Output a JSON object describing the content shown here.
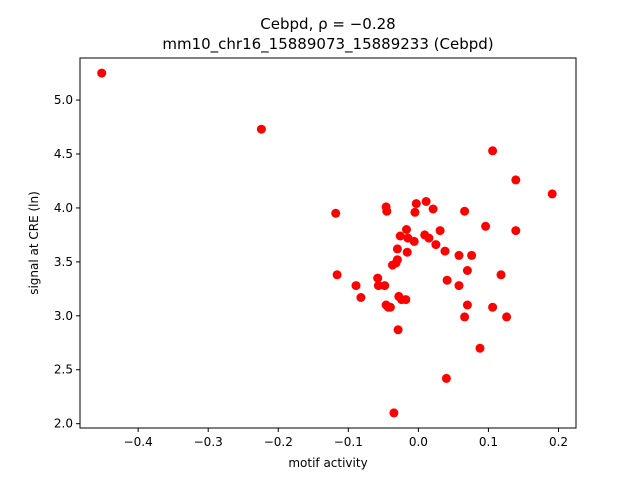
{
  "chart_data": {
    "type": "scatter",
    "title_line1": "Cebpd, ρ = −0.28",
    "title_line2": "mm10_chr16_15889073_15889233 (Cebpd)",
    "xlabel": "motif activity",
    "ylabel": "signal at CRE (ln)",
    "xlim": [
      -0.483,
      0.225
    ],
    "ylim": [
      1.96,
      5.39
    ],
    "xticks": [
      -0.4,
      -0.3,
      -0.2,
      -0.1,
      0.0,
      0.1,
      0.2
    ],
    "xtick_labels": [
      "−0.4",
      "−0.3",
      "−0.2",
      "−0.1",
      "0.0",
      "0.1",
      "0.2"
    ],
    "yticks": [
      2.0,
      2.5,
      3.0,
      3.5,
      4.0,
      4.5,
      5.0
    ],
    "ytick_labels": [
      "2.0",
      "2.5",
      "3.0",
      "3.5",
      "4.0",
      "4.5",
      "5.0"
    ],
    "grid": false,
    "marker_color": "#ff0000",
    "points": [
      [
        -0.452,
        5.25
      ],
      [
        -0.224,
        4.73
      ],
      [
        -0.118,
        3.95
      ],
      [
        -0.116,
        3.38
      ],
      [
        -0.089,
        3.28
      ],
      [
        -0.082,
        3.17
      ],
      [
        -0.058,
        3.35
      ],
      [
        -0.057,
        3.28
      ],
      [
        -0.048,
        3.28
      ],
      [
        -0.046,
        4.01
      ],
      [
        -0.045,
        3.97
      ],
      [
        -0.046,
        3.1
      ],
      [
        -0.043,
        3.08
      ],
      [
        -0.04,
        3.08
      ],
      [
        -0.037,
        3.47
      ],
      [
        -0.035,
        2.1
      ],
      [
        -0.032,
        3.49
      ],
      [
        -0.03,
        3.52
      ],
      [
        -0.03,
        3.62
      ],
      [
        -0.029,
        2.87
      ],
      [
        -0.028,
        3.18
      ],
      [
        -0.026,
        3.74
      ],
      [
        -0.024,
        3.15
      ],
      [
        -0.017,
        3.8
      ],
      [
        -0.016,
        3.59
      ],
      [
        -0.018,
        3.15
      ],
      [
        -0.015,
        3.72
      ],
      [
        -0.006,
        3.69
      ],
      [
        -0.005,
        3.96
      ],
      [
        -0.003,
        4.04
      ],
      [
        0.009,
        3.75
      ],
      [
        0.011,
        4.06
      ],
      [
        0.015,
        3.72
      ],
      [
        0.021,
        3.99
      ],
      [
        0.025,
        3.66
      ],
      [
        0.031,
        3.79
      ],
      [
        0.038,
        3.6
      ],
      [
        0.04,
        2.42
      ],
      [
        0.041,
        3.33
      ],
      [
        0.058,
        3.56
      ],
      [
        0.058,
        3.28
      ],
      [
        0.066,
        3.97
      ],
      [
        0.066,
        2.99
      ],
      [
        0.07,
        3.42
      ],
      [
        0.07,
        3.1
      ],
      [
        0.076,
        3.56
      ],
      [
        0.088,
        2.7
      ],
      [
        0.096,
        3.83
      ],
      [
        0.106,
        4.53
      ],
      [
        0.106,
        3.08
      ],
      [
        0.118,
        3.38
      ],
      [
        0.126,
        2.99
      ],
      [
        0.139,
        4.26
      ],
      [
        0.139,
        3.79
      ],
      [
        0.191,
        4.13
      ]
    ]
  }
}
